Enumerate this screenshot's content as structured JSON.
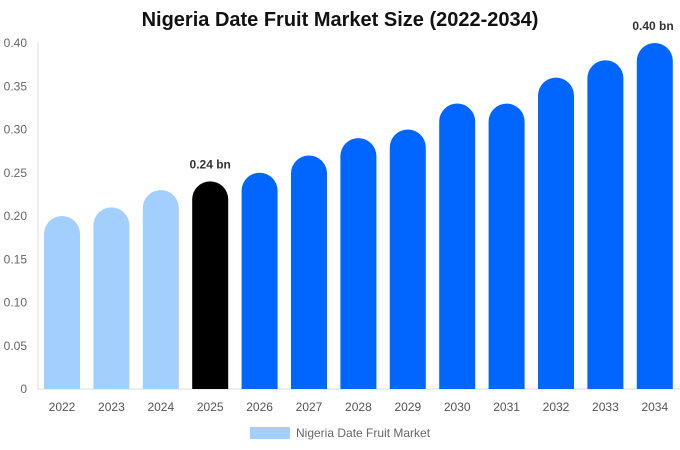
{
  "chart_data": {
    "type": "bar",
    "title": "Nigeria Date Fruit Market Size (2022-2034)",
    "categories": [
      "2022",
      "2023",
      "2024",
      "2025",
      "2026",
      "2027",
      "2028",
      "2029",
      "2030",
      "2031",
      "2032",
      "2033",
      "2034"
    ],
    "series": [
      {
        "name": "Nigeria Date Fruit Market",
        "values": [
          0.2,
          0.21,
          0.23,
          0.24,
          0.25,
          0.27,
          0.29,
          0.3,
          0.33,
          0.33,
          0.36,
          0.38,
          0.4
        ]
      }
    ],
    "ylim": [
      0,
      0.4
    ],
    "yticks": [
      "0",
      "0.05",
      "0.10",
      "0.15",
      "0.20",
      "0.25",
      "0.30",
      "0.35",
      "0.40"
    ],
    "annotations": [
      {
        "category": "2025",
        "text": "0.24 bn"
      },
      {
        "category": "2034",
        "text": "0.40 bn"
      }
    ],
    "colors": {
      "historical": "#a3cfff",
      "current": "#000000",
      "forecast": "#0066ff"
    },
    "grid": false,
    "legend": "bottom"
  }
}
